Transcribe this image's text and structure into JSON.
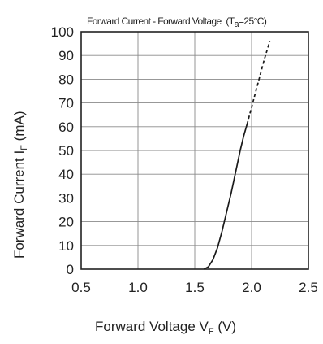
{
  "chart_data": {
    "type": "line",
    "title": {
      "main": "Forward Current - Forward Voltage",
      "cond_prefix": "(T",
      "cond_sub": "a",
      "cond_suffix": "=25°C)"
    },
    "xlabel": {
      "main": "Forward Voltage  V",
      "sub": "F",
      "unit": " (V)"
    },
    "ylabel": {
      "main": "Forward Current  I",
      "sub": "F",
      "unit": "  (mA)"
    },
    "xlim": [
      0.5,
      2.5
    ],
    "ylim": [
      0,
      100
    ],
    "xticks": [
      "0.5",
      "1.0",
      "1.5",
      "2.0",
      "2.5"
    ],
    "yticks": [
      "0",
      "10",
      "20",
      "30",
      "40",
      "50",
      "60",
      "70",
      "80",
      "90",
      "100"
    ],
    "x_gridlines": [
      1.0,
      1.5,
      2.0
    ],
    "y_gridlines": [
      10,
      20,
      30,
      40,
      50,
      60,
      70,
      80,
      90
    ],
    "series": [
      {
        "style": "solid",
        "color": "#1a1a1a",
        "x": [
          1.58,
          1.62,
          1.66,
          1.7,
          1.74,
          1.78,
          1.82,
          1.86,
          1.9,
          1.93,
          1.96
        ],
        "y": [
          0,
          1,
          4,
          9,
          16,
          24,
          32,
          41,
          50,
          56,
          61
        ]
      },
      {
        "style": "dashed",
        "color": "#1a1a1a",
        "x": [
          1.96,
          2.01,
          2.06,
          2.11,
          2.16
        ],
        "y": [
          61,
          70,
          79,
          88,
          96
        ]
      }
    ]
  }
}
